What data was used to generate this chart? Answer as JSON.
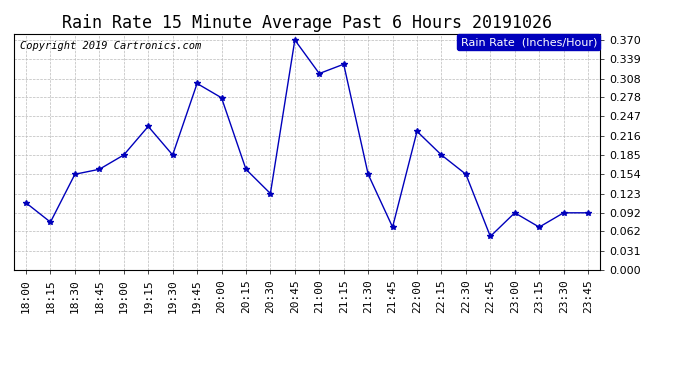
{
  "title": "Rain Rate 15 Minute Average Past 6 Hours 20191026",
  "copyright": "Copyright 2019 Cartronics.com",
  "legend_label": "Rain Rate  (Inches/Hour)",
  "line_color": "#0000bb",
  "marker_color": "#0000bb",
  "background_color": "#ffffff",
  "grid_color": "#bbbbbb",
  "x_labels": [
    "18:00",
    "18:15",
    "18:30",
    "18:45",
    "19:00",
    "19:15",
    "19:30",
    "19:45",
    "20:00",
    "20:15",
    "20:30",
    "20:45",
    "21:00",
    "21:15",
    "21:30",
    "21:45",
    "22:00",
    "22:15",
    "22:30",
    "22:45",
    "23:00",
    "23:15",
    "23:30",
    "23:45"
  ],
  "y_values": [
    0.108,
    0.077,
    0.154,
    0.162,
    0.185,
    0.231,
    0.185,
    0.3,
    0.277,
    0.162,
    0.123,
    0.37,
    0.316,
    0.331,
    0.154,
    0.069,
    0.223,
    0.185,
    0.154,
    0.054,
    0.092,
    0.069,
    0.092,
    0.092
  ],
  "ylim": [
    0.0,
    0.38
  ],
  "yticks": [
    0.0,
    0.031,
    0.062,
    0.092,
    0.123,
    0.154,
    0.185,
    0.216,
    0.247,
    0.278,
    0.308,
    0.339,
    0.37
  ],
  "title_fontsize": 12,
  "tick_fontsize": 8,
  "legend_fontsize": 8,
  "copyright_fontsize": 7.5
}
